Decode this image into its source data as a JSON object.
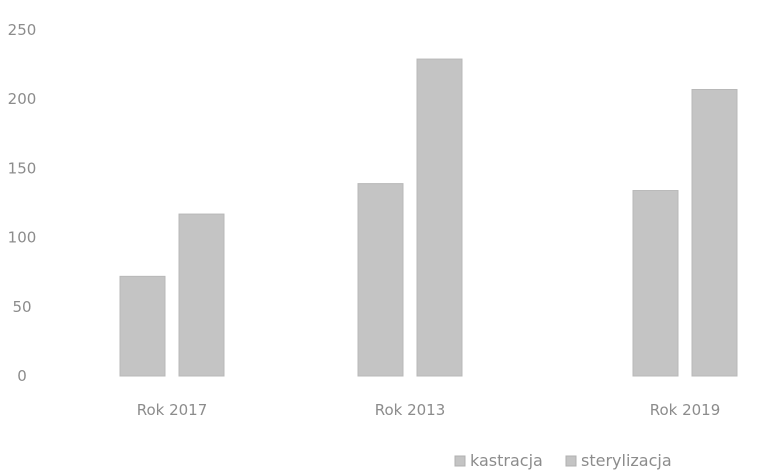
{
  "chart_data": {
    "type": "bar",
    "title": "",
    "xlabel": "",
    "ylabel": "",
    "categories": [
      "Rok 2017",
      "Rok 2013",
      "Rok 2019"
    ],
    "series": [
      {
        "name": "kastracja",
        "values": [
          72,
          139,
          134
        ],
        "color": "#c4c4c4"
      },
      {
        "name": "sterylizacja",
        "values": [
          117,
          229,
          207
        ],
        "color": "#c4c4c4"
      }
    ],
    "ylim": [
      0,
      250
    ],
    "yticks": [
      0,
      50,
      100,
      150,
      200,
      250
    ],
    "grid": false,
    "legend_position": "bottom-right"
  }
}
